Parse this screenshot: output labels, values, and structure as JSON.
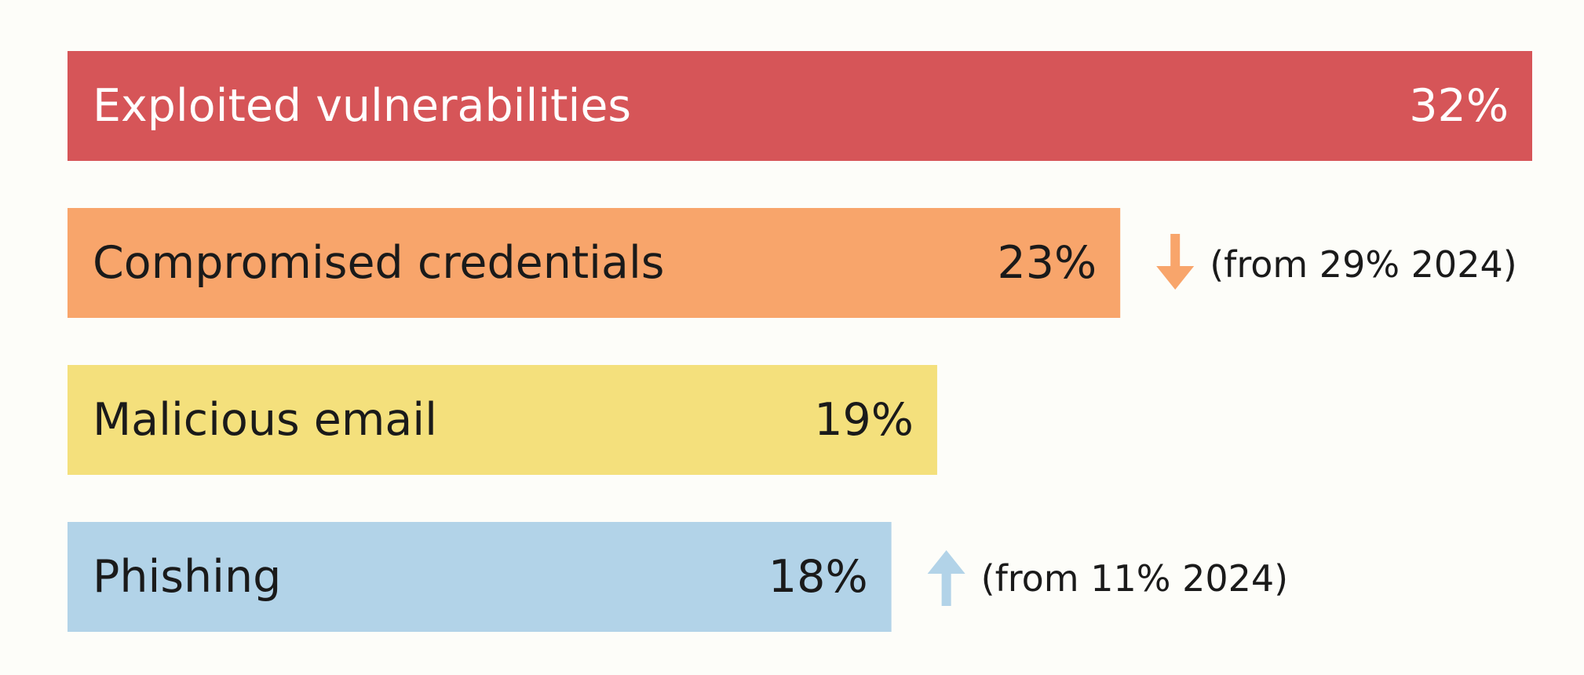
{
  "chart_data": {
    "type": "bar",
    "orientation": "horizontal",
    "categories": [
      "Exploited vulnerabilities",
      "Compromised credentials",
      "Malicious email",
      "Phishing"
    ],
    "values": [
      32,
      23,
      19,
      18
    ],
    "value_labels": [
      "32%",
      "23%",
      "19%",
      "18%"
    ],
    "unit": "%",
    "xlim": [
      0,
      32
    ],
    "grid": false,
    "legend": "none",
    "colors": [
      "#d65558",
      "#f8a56b",
      "#f4e07c",
      "#b2d3e8"
    ],
    "value_label_colors": [
      "#ffffff",
      "#1a1a1a",
      "#1a1a1a",
      "#1a1a1a"
    ],
    "category_label_colors": [
      "#ffffff",
      "#1a1a1a",
      "#1a1a1a",
      "#1a1a1a"
    ],
    "annotations": [
      {
        "category": "Compromised credentials",
        "direction": "down",
        "icon": "arrow-down-icon",
        "color": "#f8a56b",
        "text": "(from 29% 2024)"
      },
      {
        "category": "Phishing",
        "direction": "up",
        "icon": "arrow-up-icon",
        "color": "#b2d3e8",
        "text": "(from 11% 2024)"
      }
    ]
  }
}
